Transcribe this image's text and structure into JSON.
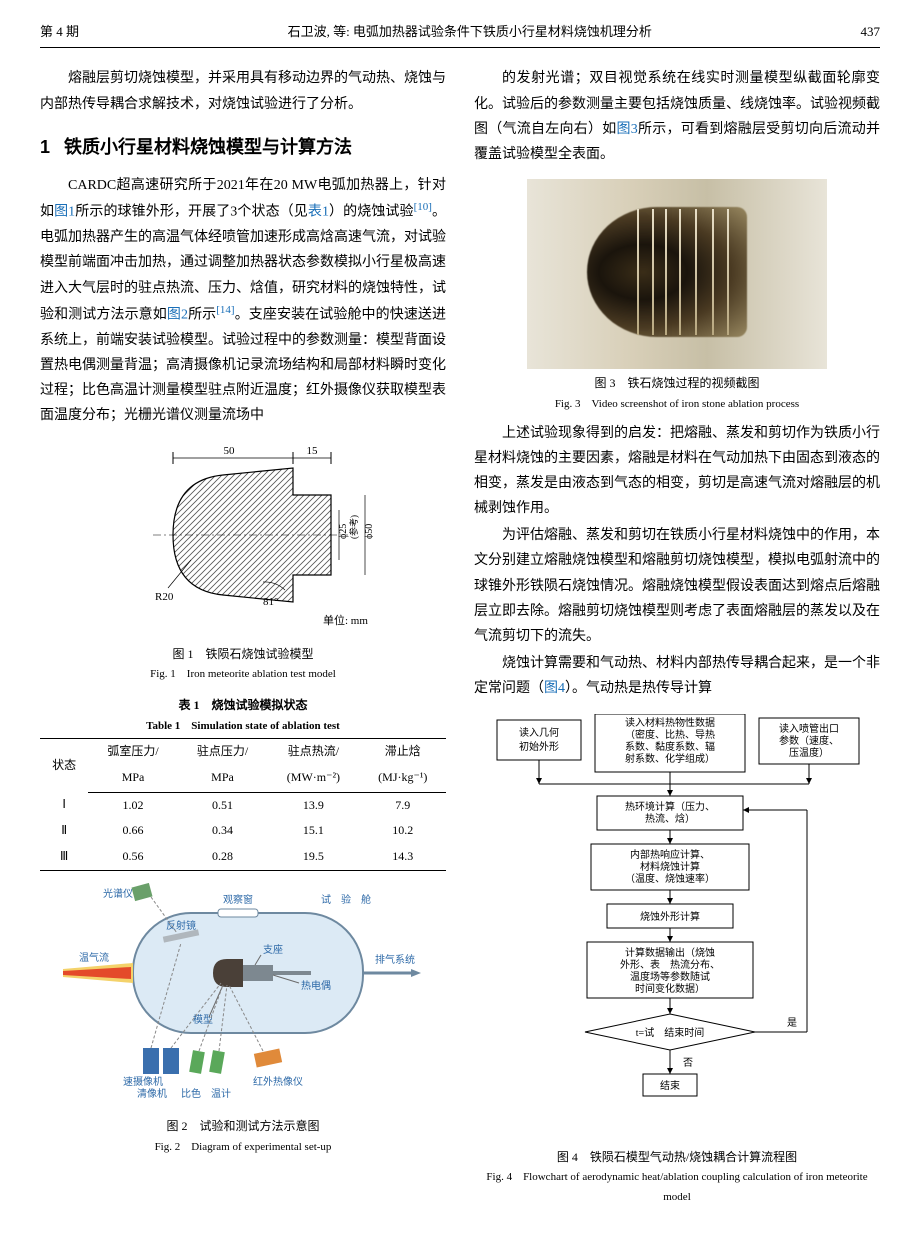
{
  "header": {
    "issue": "第 4 期",
    "running_title": "石卫波, 等: 电弧加热器试验条件下铁质小行星材料烧蚀机理分析",
    "page_no": "437"
  },
  "left": {
    "para1": "熔融层剪切烧蚀模型，并采用具有移动边界的气动热、烧蚀与内部热传导耦合求解技术，对烧蚀试验进行了分析。",
    "section_no": "1",
    "section_title": "铁质小行星材料烧蚀模型与计算方法",
    "para2a": "CARDC超高速研究所于2021年在20 MW电弧加热器上，针对如",
    "link1": "图1",
    "para2b": "所示的球锥外形，开展了3个状态（见",
    "link1b": "表1",
    "para2c": "）的烧蚀试验",
    "ref10": "[10]",
    "para2d": "。电弧加热器产生的高温气体经喷管加速形成高焓高速气流，对试验模型前端面冲击加热，通过调整加热器状态参数模拟小行星极高速进入大气层时的驻点热流、压力、焓值，研究材料的烧蚀特性，试验和测试方法示意如",
    "link2": "图2",
    "para2e": "所示",
    "ref14": "[14]",
    "para2f": "。支座安装在试验舱中的快速送进系统上，前端安装试验模型。试验过程中的参数测量：模型背面设置热电偶测量背温；高清摄像机记录流场结构和局部材料瞬时变化过程；比色高温计测量模型驻点附近温度；红外摄像仪获取模型表面温度分布；光栅光谱仪测量流场中"
  },
  "fig1": {
    "dim_top1": "50",
    "dim_top2": "15",
    "dim_r": "R20",
    "dim_angle": "81°",
    "dim_d1": "ϕ25",
    "dim_d1_note": "(参考)",
    "dim_d2": "ϕ50",
    "unit": "单位: mm",
    "caption_cn": "图 1　铁陨石烧蚀试验模型",
    "caption_en": "Fig. 1　Iron meteorite ablation test model",
    "colors": {
      "hatch": "#555555",
      "line": "#000000"
    }
  },
  "table1": {
    "title_cn": "表 1　烧蚀试验模拟状态",
    "title_en": "Table 1　Simulation state of ablation test",
    "columns": [
      "状态",
      "弧室压力/ MPa",
      "驻点压力/ MPa",
      "驻点热流/ (MW·m⁻²)",
      "滞止焓 (MJ·kg⁻¹)"
    ],
    "rows": [
      [
        "Ⅰ",
        "1.02",
        "0.51",
        "13.9",
        "7.9"
      ],
      [
        "Ⅱ",
        "0.66",
        "0.34",
        "15.1",
        "10.2"
      ],
      [
        "Ⅲ",
        "0.56",
        "0.28",
        "19.5",
        "14.3"
      ]
    ]
  },
  "fig2": {
    "labels": {
      "spectrometer": "光谱仪",
      "mirror": "反射镜",
      "window": "观察窗",
      "chamber": "试　验　舱",
      "support": "支座",
      "thermocouple": "热电偶",
      "exhaust": "排气系统",
      "hotflow": "温气流",
      "model": "模型",
      "highspeed_cam": "速摄像机",
      "clear_cam": "清像机",
      "pyrometer": "比色",
      "temp_meter": "温计",
      "ir_cam": "红外热像仪"
    },
    "colors": {
      "chamber": "#dceaf5",
      "chamber_stroke": "#6e89a0",
      "hotflow_outer": "#f4d26a",
      "hotflow_inner": "#e44a2a",
      "support": "#7d8890",
      "model": "#4a4038",
      "label": "#2e6aa8",
      "mirror": "#b0b7bd",
      "spectrometer": "#6aa06a",
      "cam_blue": "#3a6fae",
      "cam_green": "#5aa85a",
      "ir": "#e08a3a",
      "line": "#6b6b6b"
    },
    "caption_cn": "图 2　试验和测试方法示意图",
    "caption_en": "Fig. 2　Diagram of experimental set-up"
  },
  "right": {
    "para1a": "的发射光谱；双目视觉系统在线实时测量模型纵截面轮廓变化。试验后的参数测量主要包括烧蚀质量、线烧蚀率。试验视频截图（气流自左向右）如",
    "link3": "图3",
    "para1b": "所示，可看到熔融层受剪切向后流动并覆盖试验模型全表面。",
    "para2": "上述试验现象得到的启发：把熔融、蒸发和剪切作为铁质小行星材料烧蚀的主要因素，熔融是材料在气动加热下由固态到液态的相变，蒸发是由液态到气态的相变，剪切是高速气流对熔融层的机械剥蚀作用。",
    "para3": "为评估熔融、蒸发和剪切在铁质小行星材料烧蚀中的作用，本文分别建立熔融烧蚀模型和熔融剪切烧蚀模型，模拟电弧射流中的球锥外形铁陨石烧蚀情况。熔融烧蚀模型假设表面达到熔点后熔融层立即去除。熔融剪切烧蚀模型则考虑了表面熔融层的蒸发以及在气流剪切下的流失。",
    "para4a": "烧蚀计算需要和气动热、材料内部热传导耦合起来，是一个非定常问题（",
    "link4": "图4",
    "para4b": "）。气动热是热传导计算"
  },
  "fig3": {
    "caption_cn": "图 3　铁石烧蚀过程的视频截图",
    "caption_en": "Fig. 3　Video screenshot of iron stone ablation process",
    "streak_positions": [
      110,
      125,
      138,
      152,
      168,
      185,
      200
    ]
  },
  "fig4": {
    "nodes": {
      "n1": "读入几何\n初始外形",
      "n2": "读入材料热物性数据\n（密度、比热、导热\n系数、黏度系数、辐\n射系数、化学组成）",
      "n3": "读入喷管出口\n参数（速度、\n压温度）",
      "n4": "热环境计算（压力、\n热流、焓）",
      "n5": "内部热响应计算、\n材料烧蚀计算\n（温度、烧蚀速率）",
      "n6": "烧蚀外形计算",
      "n7": "计算数据输出（烧蚀\n外形、表　热流分布、\n温度场等参数随试\n时间变化数据）",
      "n8": "t=试　结束时间",
      "n9": "结束",
      "yes": "是",
      "no": "否"
    },
    "colors": {
      "box_stroke": "#000000",
      "box_fill": "#ffffff",
      "arrow": "#000000"
    },
    "caption_cn": "图 4　铁陨石模型气动热/烧蚀耦合计算流程图",
    "caption_en": "Fig. 4　Flowchart of aerodynamic heat/ablation coupling calculation of iron meteorite model"
  }
}
